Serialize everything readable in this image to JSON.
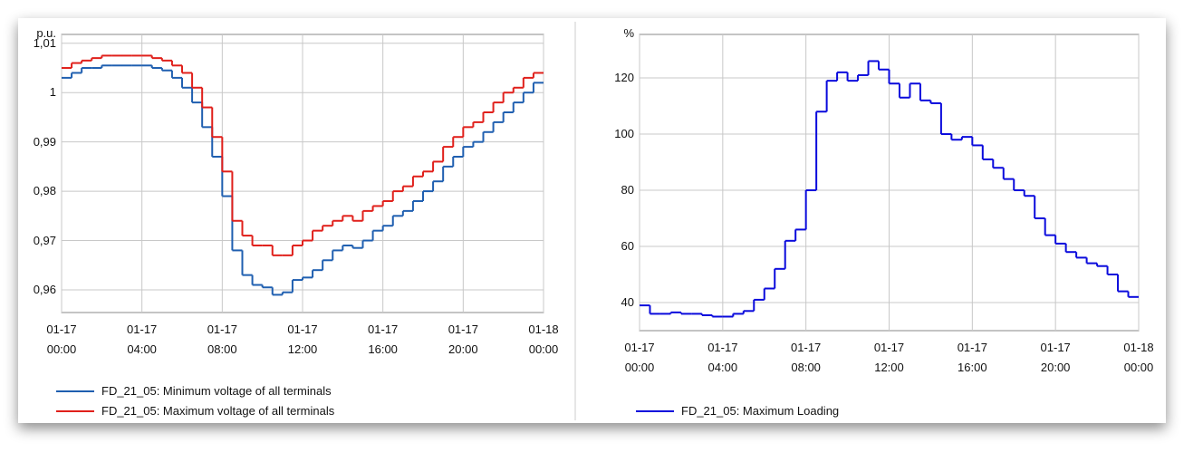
{
  "chart_data": [
    {
      "type": "line",
      "y_label": "p.u.",
      "x": [
        0,
        0.5,
        1,
        1.5,
        2,
        2.5,
        3,
        3.5,
        4,
        4.5,
        5,
        5.5,
        6,
        6.5,
        7,
        7.5,
        8,
        8.5,
        9,
        9.5,
        10,
        10.5,
        11,
        11.5,
        12,
        12.5,
        13,
        13.5,
        14,
        14.5,
        15,
        15.5,
        16,
        16.5,
        17,
        17.5,
        18,
        18.5,
        19,
        19.5,
        20,
        20.5,
        21,
        21.5,
        22,
        22.5,
        23,
        23.5
      ],
      "series": [
        {
          "name": "FD_21_05: Minimum voltage of all terminals",
          "color": "#1f5fb0",
          "values": [
            1.003,
            1.004,
            1.005,
            1.005,
            1.0055,
            1.0055,
            1.0055,
            1.0055,
            1.0055,
            1.005,
            1.0045,
            1.003,
            1.001,
            0.998,
            0.993,
            0.987,
            0.979,
            0.968,
            0.963,
            0.961,
            0.9605,
            0.959,
            0.9595,
            0.962,
            0.9625,
            0.964,
            0.966,
            0.968,
            0.969,
            0.9685,
            0.97,
            0.972,
            0.973,
            0.975,
            0.976,
            0.978,
            0.98,
            0.982,
            0.985,
            0.987,
            0.989,
            0.99,
            0.992,
            0.994,
            0.996,
            0.998,
            1.0,
            1.002
          ]
        },
        {
          "name": "FD_21_05: Maximum voltage of all terminals",
          "color": "#e0201b",
          "values": [
            1.005,
            1.006,
            1.0065,
            1.007,
            1.0075,
            1.0075,
            1.0075,
            1.0075,
            1.0075,
            1.007,
            1.0065,
            1.0055,
            1.004,
            1.001,
            0.997,
            0.991,
            0.984,
            0.974,
            0.971,
            0.969,
            0.969,
            0.967,
            0.967,
            0.969,
            0.97,
            0.972,
            0.973,
            0.974,
            0.975,
            0.974,
            0.976,
            0.977,
            0.978,
            0.98,
            0.981,
            0.983,
            0.984,
            0.986,
            0.989,
            0.991,
            0.993,
            0.994,
            0.996,
            0.998,
            1.0,
            1.001,
            1.003,
            1.004
          ]
        }
      ],
      "xlim": [
        0,
        24
      ],
      "xticks": [
        {
          "value": 0,
          "label": "01-17\n00:00"
        },
        {
          "value": 4,
          "label": "01-17\n04:00"
        },
        {
          "value": 8,
          "label": "01-17\n08:00"
        },
        {
          "value": 12,
          "label": "01-17\n12:00"
        },
        {
          "value": 16,
          "label": "01-17\n16:00"
        },
        {
          "value": 20,
          "label": "01-17\n20:00"
        },
        {
          "value": 24,
          "label": "01-18\n00:00"
        }
      ],
      "ylim": [
        0.9554,
        1.0118
      ],
      "yticks": [
        {
          "value": 0.96,
          "label": "0,96"
        },
        {
          "value": 0.97,
          "label": "0,97"
        },
        {
          "value": 0.98,
          "label": "0,98"
        },
        {
          "value": 0.99,
          "label": "0,99"
        },
        1,
        {
          "value": 1.01,
          "label": "1,01"
        }
      ],
      "grid": true
    },
    {
      "type": "line",
      "y_label": "%",
      "x": [
        0,
        0.5,
        1,
        1.5,
        2,
        2.5,
        3,
        3.5,
        4,
        4.5,
        5,
        5.5,
        6,
        6.5,
        7,
        7.5,
        8,
        8.5,
        9,
        9.5,
        10,
        10.5,
        11,
        11.5,
        12,
        12.5,
        13,
        13.5,
        14,
        14.5,
        15,
        15.5,
        16,
        16.5,
        17,
        17.5,
        18,
        18.5,
        19,
        19.5,
        20,
        20.5,
        21,
        21.5,
        22,
        22.5,
        23,
        23.5
      ],
      "series": [
        {
          "name": "FD_21_05: Maximum Loading",
          "color": "#0a0adc",
          "values": [
            39,
            36,
            36,
            36.5,
            36,
            36,
            35.5,
            35,
            35,
            36,
            37,
            41,
            45,
            52,
            62,
            66,
            80,
            108,
            119,
            122,
            119,
            121,
            126,
            123,
            118,
            113,
            118,
            112,
            111,
            100,
            98,
            99,
            96,
            91,
            88,
            84,
            80,
            78,
            70,
            64,
            61,
            58,
            56,
            54,
            53,
            50,
            44,
            42
          ]
        }
      ],
      "xlim": [
        0,
        24
      ],
      "xticks": [
        {
          "value": 0,
          "label": "01-17\n00:00"
        },
        {
          "value": 4,
          "label": "01-17\n04:00"
        },
        {
          "value": 8,
          "label": "01-17\n08:00"
        },
        {
          "value": 12,
          "label": "01-17\n12:00"
        },
        {
          "value": 16,
          "label": "01-17\n16:00"
        },
        {
          "value": 20,
          "label": "01-17\n20:00"
        },
        {
          "value": 24,
          "label": "01-18\n00:00"
        }
      ],
      "ylim": [
        30,
        135.5
      ],
      "yticks": [
        40,
        60,
        80,
        100,
        120
      ],
      "grid": true
    }
  ]
}
